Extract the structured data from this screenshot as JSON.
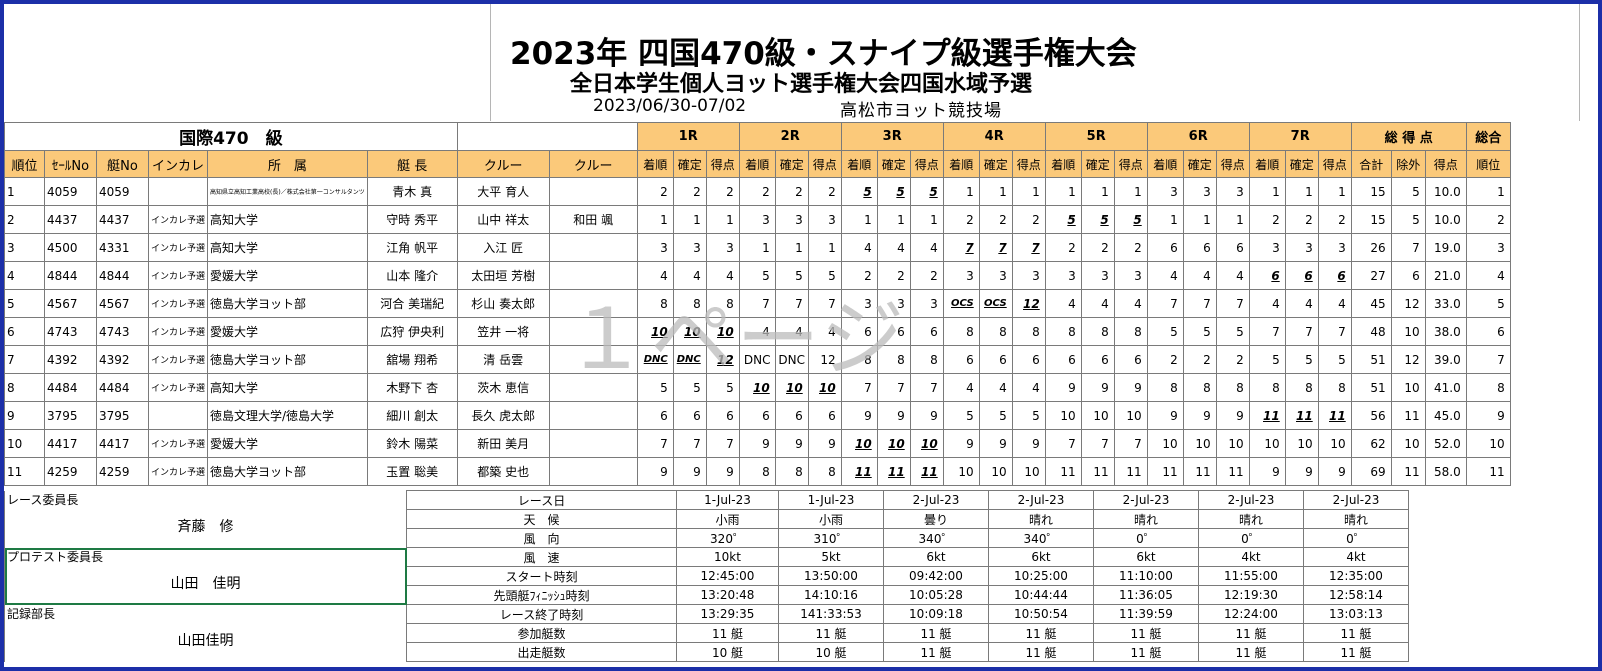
{
  "header": {
    "title": "2023年 四国470級・スナイプ級選手権大会",
    "subtitle": "全日本学生個人ヨット選手権大会四国水域予選",
    "date": "2023/06/30-07/02",
    "venue": "高松市ヨット競技場"
  },
  "class_label": "国際470　級",
  "races": [
    "1R",
    "2R",
    "3R",
    "4R",
    "5R",
    "6R",
    "7R"
  ],
  "total_label": "総 得 点",
  "overall_label": "総合",
  "columns": [
    "順位",
    "ｾｰﾙNo",
    "艇No",
    "インカレ",
    "所　属",
    "艇 長",
    "クルー",
    "クルー"
  ],
  "race_sub": [
    "着順",
    "確定",
    "得点"
  ],
  "total_sub": [
    "合計",
    "除外",
    "得点"
  ],
  "overall_sub": "順位",
  "rows": [
    {
      "rank": "1",
      "sail": "4059",
      "boat": "4059",
      "inc": "",
      "team": "高知県立高知工業高校(長)／株式会社第一コンサルタンツ",
      "team_tiny": true,
      "skipper": "青木 真",
      "crew1": "大平 育人",
      "crew2": "",
      "r": [
        [
          "2",
          "2",
          "2"
        ],
        [
          "2",
          "2",
          "2"
        ],
        [
          "5",
          "5",
          "5"
        ],
        [
          "1",
          "1",
          "1"
        ],
        [
          "1",
          "1",
          "1"
        ],
        [
          "3",
          "3",
          "3"
        ],
        [
          "1",
          "1",
          "1"
        ]
      ],
      "d": [
        false,
        false,
        true,
        false,
        false,
        false,
        false
      ],
      "tot": [
        "15",
        "5",
        "10.0"
      ],
      "ov": "1"
    },
    {
      "rank": "2",
      "sail": "4437",
      "boat": "4437",
      "inc": "インカレ予選",
      "team": "高知大学",
      "skipper": "守時 秀平",
      "crew1": "山中 祥太",
      "crew2": "和田 颯",
      "r": [
        [
          "1",
          "1",
          "1"
        ],
        [
          "3",
          "3",
          "3"
        ],
        [
          "1",
          "1",
          "1"
        ],
        [
          "2",
          "2",
          "2"
        ],
        [
          "5",
          "5",
          "5"
        ],
        [
          "1",
          "1",
          "1"
        ],
        [
          "2",
          "2",
          "2"
        ]
      ],
      "d": [
        false,
        false,
        false,
        false,
        true,
        false,
        false
      ],
      "tot": [
        "15",
        "5",
        "10.0"
      ],
      "ov": "2"
    },
    {
      "rank": "3",
      "sail": "4500",
      "boat": "4331",
      "inc": "インカレ予選",
      "team": "高知大学",
      "skipper": "江角 帆平",
      "crew1": "入江 匠",
      "crew2": "",
      "r": [
        [
          "3",
          "3",
          "3"
        ],
        [
          "1",
          "1",
          "1"
        ],
        [
          "4",
          "4",
          "4"
        ],
        [
          "7",
          "7",
          "7"
        ],
        [
          "2",
          "2",
          "2"
        ],
        [
          "6",
          "6",
          "6"
        ],
        [
          "3",
          "3",
          "3"
        ]
      ],
      "d": [
        false,
        false,
        false,
        true,
        false,
        false,
        false
      ],
      "tot": [
        "26",
        "7",
        "19.0"
      ],
      "ov": "3"
    },
    {
      "rank": "4",
      "sail": "4844",
      "boat": "4844",
      "inc": "インカレ予選",
      "team": "愛媛大学",
      "skipper": "山本 隆介",
      "crew1": "太田垣 芳樹",
      "crew2": "",
      "r": [
        [
          "4",
          "4",
          "4"
        ],
        [
          "5",
          "5",
          "5"
        ],
        [
          "2",
          "2",
          "2"
        ],
        [
          "3",
          "3",
          "3"
        ],
        [
          "3",
          "3",
          "3"
        ],
        [
          "4",
          "4",
          "4"
        ],
        [
          "6",
          "6",
          "6"
        ]
      ],
      "d": [
        false,
        false,
        false,
        false,
        false,
        false,
        true
      ],
      "tot": [
        "27",
        "6",
        "21.0"
      ],
      "ov": "4"
    },
    {
      "rank": "5",
      "sail": "4567",
      "boat": "4567",
      "inc": "インカレ予選",
      "team": "徳島大学ヨット部",
      "skipper": "河合 美瑞紀",
      "crew1": "杉山 奏太郎",
      "crew2": "",
      "r": [
        [
          "8",
          "8",
          "8"
        ],
        [
          "7",
          "7",
          "7"
        ],
        [
          "3",
          "3",
          "3"
        ],
        [
          "OCS",
          "OCS",
          "12"
        ],
        [
          "4",
          "4",
          "4"
        ],
        [
          "7",
          "7",
          "7"
        ],
        [
          "4",
          "4",
          "4"
        ]
      ],
      "d": [
        false,
        false,
        false,
        true,
        false,
        false,
        false
      ],
      "tot": [
        "45",
        "12",
        "33.0"
      ],
      "ov": "5"
    },
    {
      "rank": "6",
      "sail": "4743",
      "boat": "4743",
      "inc": "インカレ予選",
      "team": "愛媛大学",
      "skipper": "広狩 伊央利",
      "crew1": "笠井 一将",
      "crew2": "",
      "r": [
        [
          "10",
          "10",
          "10"
        ],
        [
          "4",
          "4",
          "4"
        ],
        [
          "6",
          "6",
          "6"
        ],
        [
          "8",
          "8",
          "8"
        ],
        [
          "8",
          "8",
          "8"
        ],
        [
          "5",
          "5",
          "5"
        ],
        [
          "7",
          "7",
          "7"
        ]
      ],
      "d": [
        true,
        false,
        false,
        false,
        false,
        false,
        false
      ],
      "tot": [
        "48",
        "10",
        "38.0"
      ],
      "ov": "6"
    },
    {
      "rank": "7",
      "sail": "4392",
      "boat": "4392",
      "inc": "インカレ予選",
      "team": "徳島大学ヨット部",
      "skipper": "舘場 翔希",
      "crew1": "清 岳雲",
      "crew2": "",
      "r": [
        [
          "DNC",
          "DNC",
          "12"
        ],
        [
          "DNC",
          "DNC",
          "12"
        ],
        [
          "8",
          "8",
          "8"
        ],
        [
          "6",
          "6",
          "6"
        ],
        [
          "6",
          "6",
          "6"
        ],
        [
          "2",
          "2",
          "2"
        ],
        [
          "5",
          "5",
          "5"
        ]
      ],
      "d": [
        true,
        false,
        false,
        false,
        false,
        false,
        false
      ],
      "tot": [
        "51",
        "12",
        "39.0"
      ],
      "ov": "7"
    },
    {
      "rank": "8",
      "sail": "4484",
      "boat": "4484",
      "inc": "インカレ予選",
      "team": "高知大学",
      "skipper": "木野下 杏",
      "crew1": "茨木 恵信",
      "crew2": "",
      "r": [
        [
          "5",
          "5",
          "5"
        ],
        [
          "10",
          "10",
          "10"
        ],
        [
          "7",
          "7",
          "7"
        ],
        [
          "4",
          "4",
          "4"
        ],
        [
          "9",
          "9",
          "9"
        ],
        [
          "8",
          "8",
          "8"
        ],
        [
          "8",
          "8",
          "8"
        ]
      ],
      "d": [
        false,
        true,
        false,
        false,
        false,
        false,
        false
      ],
      "tot": [
        "51",
        "10",
        "41.0"
      ],
      "ov": "8"
    },
    {
      "rank": "9",
      "sail": "3795",
      "boat": "3795",
      "inc": "",
      "team": "徳島文理大学/徳島大学",
      "skipper": "細川 創太",
      "crew1": "長久 虎太郎",
      "crew2": "",
      "r": [
        [
          "6",
          "6",
          "6"
        ],
        [
          "6",
          "6",
          "6"
        ],
        [
          "9",
          "9",
          "9"
        ],
        [
          "5",
          "5",
          "5"
        ],
        [
          "10",
          "10",
          "10"
        ],
        [
          "9",
          "9",
          "9"
        ],
        [
          "11",
          "11",
          "11"
        ]
      ],
      "d": [
        false,
        false,
        false,
        false,
        false,
        false,
        true
      ],
      "tot": [
        "56",
        "11",
        "45.0"
      ],
      "ov": "9"
    },
    {
      "rank": "10",
      "sail": "4417",
      "boat": "4417",
      "inc": "インカレ予選",
      "team": "愛媛大学",
      "skipper": "鈴木 陽菜",
      "crew1": "新田 美月",
      "crew2": "",
      "r": [
        [
          "7",
          "7",
          "7"
        ],
        [
          "9",
          "9",
          "9"
        ],
        [
          "10",
          "10",
          "10"
        ],
        [
          "9",
          "9",
          "9"
        ],
        [
          "7",
          "7",
          "7"
        ],
        [
          "10",
          "10",
          "10"
        ],
        [
          "10",
          "10",
          "10"
        ]
      ],
      "d": [
        false,
        false,
        true,
        false,
        false,
        false,
        false
      ],
      "tot": [
        "62",
        "10",
        "52.0"
      ],
      "ov": "10"
    },
    {
      "rank": "11",
      "sail": "4259",
      "boat": "4259",
      "inc": "インカレ予選",
      "team": "徳島大学ヨット部",
      "skipper": "玉置 聡美",
      "crew1": "都築 史也",
      "crew2": "",
      "r": [
        [
          "9",
          "9",
          "9"
        ],
        [
          "8",
          "8",
          "8"
        ],
        [
          "11",
          "11",
          "11"
        ],
        [
          "10",
          "10",
          "10"
        ],
        [
          "11",
          "11",
          "11"
        ],
        [
          "11",
          "11",
          "11"
        ],
        [
          "9",
          "9",
          "9"
        ]
      ],
      "d": [
        false,
        false,
        true,
        false,
        false,
        false,
        false
      ],
      "tot": [
        "69",
        "11",
        "58.0"
      ],
      "ov": "11"
    }
  ],
  "officials": {
    "race_chair_label": "レース委員長",
    "race_chair": "斉藤　修",
    "protest_chair_label": "プロテスト委員長",
    "protest_chair": "山田　佳明",
    "records_chair_label": "記録部長",
    "records_chair": "山田佳明"
  },
  "race_info": [
    {
      "label": "レース日",
      "values": [
        "1-Jul-23",
        "1-Jul-23",
        "2-Jul-23",
        "2-Jul-23",
        "2-Jul-23",
        "2-Jul-23",
        "2-Jul-23"
      ]
    },
    {
      "label": "天　候",
      "values": [
        "小雨",
        "小雨",
        "曇り",
        "晴れ",
        "晴れ",
        "晴れ",
        "晴れ"
      ]
    },
    {
      "label": "風　向",
      "values": [
        "320゜",
        "310゜",
        "340゜",
        "340゜",
        "0゜",
        "0゜",
        "0゜"
      ]
    },
    {
      "label": "風　速",
      "values": [
        "10kt",
        "5kt",
        "6kt",
        "6kt",
        "6kt",
        "4kt",
        "4kt"
      ]
    },
    {
      "label": "スタート時刻",
      "values": [
        "12:45:00",
        "13:50:00",
        "09:42:00",
        "10:25:00",
        "11:10:00",
        "11:55:00",
        "12:35:00"
      ]
    },
    {
      "label": "先頭艇ﾌｨﾆｯｼｭ時刻",
      "values": [
        "13:20:48",
        "14:10:16",
        "10:05:28",
        "10:44:44",
        "11:36:05",
        "12:19:30",
        "12:58:14"
      ]
    },
    {
      "label": "レース終了時刻",
      "values": [
        "13:29:35",
        "141:33:53",
        "10:09:18",
        "10:50:54",
        "11:39:59",
        "12:24:00",
        "13:03:13"
      ]
    },
    {
      "label": "参加艇数",
      "values": [
        "11 艇",
        "11 艇",
        "11 艇",
        "11 艇",
        "11 艇",
        "11 艇",
        "11 艇"
      ]
    },
    {
      "label": "出走艇数",
      "values": [
        "10 艇",
        "10 艇",
        "11 艇",
        "11 艇",
        "11 艇",
        "11 艇",
        "11 艇"
      ]
    }
  ],
  "watermark": "１ページ"
}
